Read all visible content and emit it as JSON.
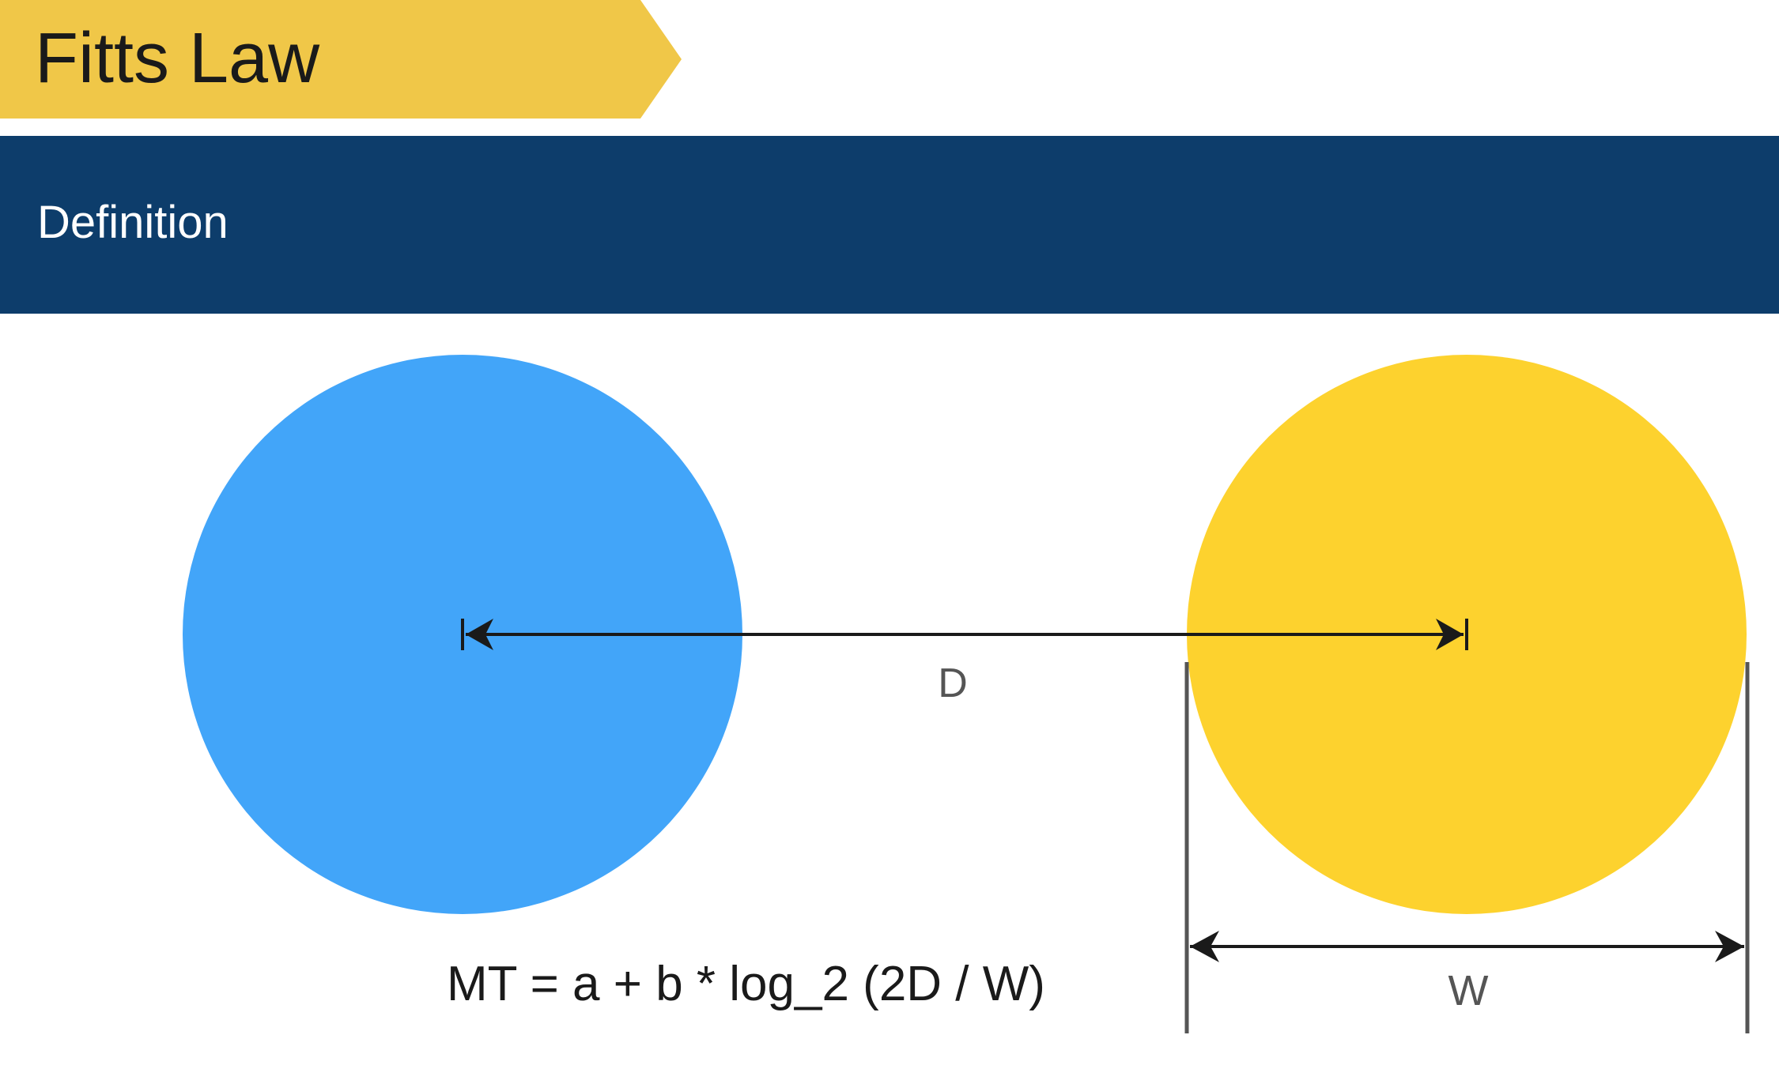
{
  "slide": {
    "title": "Fitts Law",
    "section": "Definition"
  },
  "diagram": {
    "distance_label": "D",
    "width_label": "W",
    "formula": "MT = a + b * log_2 (2D / W)"
  },
  "colors": {
    "title_banner": "#f0c748",
    "section_bar": "#0d3d6b",
    "start_circle": "#42a5f9",
    "target_circle": "#fdd22e"
  }
}
